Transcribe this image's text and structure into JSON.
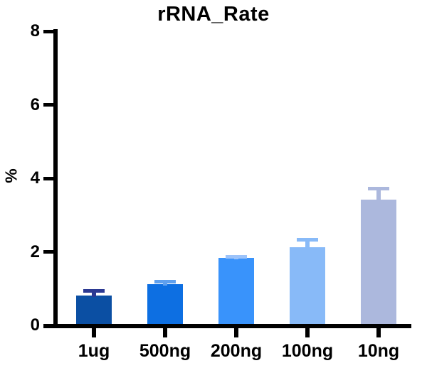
{
  "page": {
    "background": "#ffffff"
  },
  "chart_data": {
    "type": "bar",
    "title": "rRNA_Rate",
    "ylabel": "%",
    "xlabel": "",
    "categories": [
      "1ug",
      "500ng",
      "200ng",
      "100ng",
      "10ng"
    ],
    "values": [
      0.82,
      1.12,
      1.84,
      2.12,
      3.42
    ],
    "errors_upper": [
      0.13,
      0.07,
      0.04,
      0.21,
      0.3
    ],
    "bar_colors": [
      "#0B4FA3",
      "#0D6FE2",
      "#3993FB",
      "#88BAF8",
      "#ACB8DD"
    ],
    "error_bar_colors": [
      "#2B3992",
      "#5FA0EE",
      "#9CC3FA",
      "#88BAF8",
      "#ACB8DD"
    ],
    "axis_color": "#000000",
    "ylim": [
      0,
      8
    ],
    "yticks": [
      0,
      2,
      4,
      6,
      8
    ],
    "grid": false,
    "legend": null,
    "error_bars": "upper caps only"
  }
}
